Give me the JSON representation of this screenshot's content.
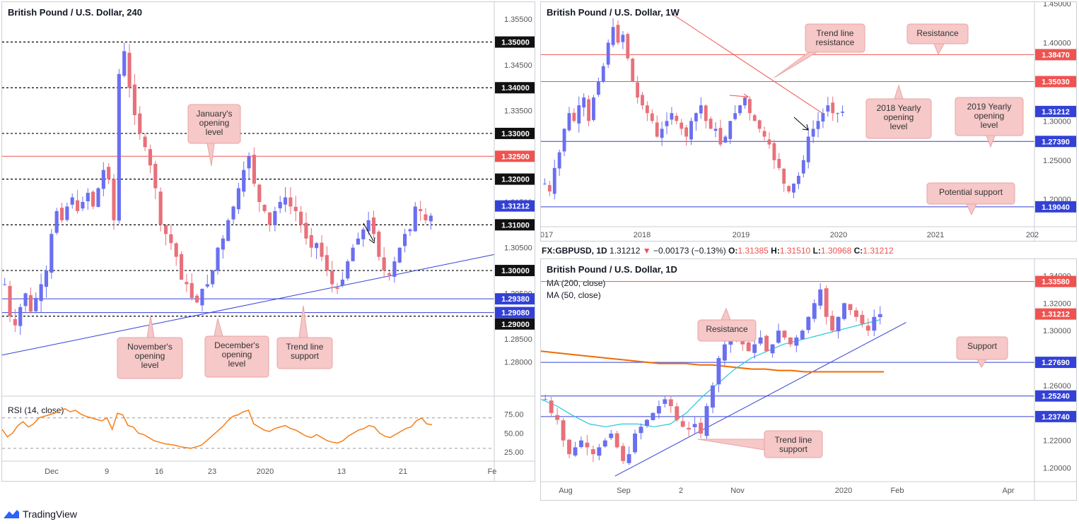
{
  "branding": {
    "name": "TradingView"
  },
  "colors": {
    "bull": "#6a6ff0",
    "bear": "#e8707a",
    "resistance": "#ef5350",
    "support": "#3341d6",
    "rsi": "#f57f17",
    "ma200": "#ef6c00",
    "ma50": "#26c6da",
    "callout_bg": "#f6c8c8",
    "callout_border": "#e9a3a3"
  },
  "header_line": {
    "symbol": "FX:GBPUSD, 1D",
    "last": "1.31212",
    "arrow": "▼",
    "change": "−0.00173 (−0.13%)",
    "o_label": "O:",
    "o": "1.31385",
    "h_label": "H:",
    "h": "1.31510",
    "l_label": "L:",
    "l": "1.30968",
    "c_label": "C:",
    "c": "1.31212"
  },
  "chart_data": [
    {
      "id": "h4",
      "type": "candlestick",
      "title": "British Pound / U.S. Dollar, 240",
      "ylim": [
        1.2725,
        1.3575
      ],
      "y_ticks": [
        "1.35500",
        "1.34500",
        "1.33500",
        "1.31500",
        "1.30500",
        "1.29500",
        "1.28500",
        "1.28000"
      ],
      "x_ticks": [
        "Dec",
        "9",
        "16",
        "23",
        "2020",
        "13",
        "21",
        "Fe"
      ],
      "dotted_levels": [
        1.35,
        1.34,
        1.33,
        1.32,
        1.31,
        1.3,
        1.29
      ],
      "horizontal_lines": [
        {
          "value": 1.325,
          "color": "red",
          "label": "1.32500"
        },
        {
          "value": 1.2938,
          "color": "blue",
          "label": "1.29380"
        },
        {
          "value": 1.2908,
          "color": "blue",
          "label": "1.29080"
        }
      ],
      "price_labels": [
        "1.35000",
        "1.34000",
        "1.33000",
        "1.32500",
        "1.32000",
        "1.31212",
        "1.31000",
        "1.30000",
        "1.29380",
        "1.29080",
        "1.29000"
      ],
      "trend_line": {
        "from": [
          0,
          1.2815
        ],
        "to": [
          1,
          1.3035
        ]
      },
      "annotations": [
        "January's opening level",
        "November's opening level",
        "December's opening level",
        "Trend line support"
      ],
      "close_path": [
        1.297,
        1.29,
        1.288,
        1.292,
        1.295,
        1.291,
        1.294,
        1.297,
        1.3,
        1.308,
        1.313,
        1.311,
        1.314,
        1.316,
        1.313,
        1.315,
        1.317,
        1.314,
        1.318,
        1.322,
        1.32,
        1.311,
        1.343,
        1.348,
        1.34,
        1.334,
        1.33,
        1.327,
        1.323,
        1.318,
        1.31,
        1.308,
        1.306,
        1.303,
        1.298,
        1.297,
        1.294,
        1.293,
        1.296,
        1.297,
        1.3,
        1.305,
        1.307,
        1.311,
        1.314,
        1.318,
        1.322,
        1.325,
        1.319,
        1.315,
        1.313,
        1.31,
        1.313,
        1.315,
        1.316,
        1.314,
        1.313,
        1.31,
        1.307,
        1.305,
        1.306,
        1.303,
        1.3,
        1.297,
        1.296,
        1.298,
        1.302,
        1.305,
        1.307,
        1.309,
        1.311,
        1.308,
        1.303,
        1.3,
        1.299,
        1.302,
        1.305,
        1.308,
        1.309,
        1.314,
        1.313,
        1.311,
        1.312
      ],
      "rsi": {
        "label": "RSI (14, close)",
        "levels": [
          70,
          30
        ],
        "ticks": [
          "75.00",
          "50.00",
          "25.00"
        ],
        "values": [
          55,
          45,
          50,
          60,
          65,
          58,
          62,
          70,
          72,
          74,
          76,
          80,
          82,
          78,
          80,
          75,
          72,
          70,
          68,
          66,
          70,
          55,
          76,
          74,
          60,
          58,
          50,
          48,
          44,
          40,
          38,
          36,
          35,
          34,
          32,
          31,
          30,
          32,
          34,
          40,
          46,
          52,
          58,
          66,
          72,
          74,
          78,
          80,
          62,
          58,
          54,
          52,
          56,
          58,
          60,
          56,
          54,
          50,
          46,
          44,
          48,
          44,
          40,
          38,
          37,
          40,
          46,
          50,
          54,
          56,
          60,
          58,
          50,
          46,
          44,
          48,
          52,
          56,
          58,
          66,
          70,
          62,
          61
        ]
      }
    },
    {
      "id": "weekly",
      "type": "candlestick",
      "title": "British Pound / U.S. Dollar, 1W",
      "ylim": [
        1.165,
        1.45
      ],
      "y_ticks": [
        "1.45000",
        "1.40000",
        "1.30000",
        "1.25000",
        "1.20000"
      ],
      "x_ticks": [
        "017",
        "2018",
        "2019",
        "2020",
        "2021",
        "202"
      ],
      "horizontal_lines": [
        {
          "value": 1.3847,
          "color": "red",
          "label": "1.38470"
        },
        {
          "value": 1.3503,
          "color": "red",
          "label": "1.35030"
        },
        {
          "value": 1.2739,
          "color": "blue",
          "label": "1.27390"
        },
        {
          "value": 1.1904,
          "color": "blue",
          "label": "1.19040"
        }
      ],
      "price_labels": [
        "1.38470",
        "1.35030",
        "1.31212",
        "1.27390",
        "1.19040"
      ],
      "trend_line": {
        "from": [
          0.27,
          1.435
        ],
        "to": [
          0.57,
          1.31
        ]
      },
      "annotations": [
        "Trend line resistance",
        "Resistance",
        "2018 Yearly opening level",
        "2019 Yearly opening level",
        "Potential support"
      ],
      "close_path": [
        1.22,
        1.21,
        1.24,
        1.26,
        1.29,
        1.31,
        1.3,
        1.32,
        1.33,
        1.3,
        1.33,
        1.35,
        1.37,
        1.4,
        1.42,
        1.4,
        1.41,
        1.38,
        1.35,
        1.33,
        1.32,
        1.31,
        1.3,
        1.28,
        1.29,
        1.3,
        1.31,
        1.3,
        1.29,
        1.28,
        1.3,
        1.31,
        1.32,
        1.3,
        1.29,
        1.29,
        1.27,
        1.28,
        1.3,
        1.31,
        1.32,
        1.33,
        1.31,
        1.3,
        1.29,
        1.28,
        1.27,
        1.25,
        1.24,
        1.22,
        1.21,
        1.22,
        1.23,
        1.25,
        1.28,
        1.29,
        1.3,
        1.31,
        1.32,
        1.31,
        1.31,
        1.312
      ]
    },
    {
      "id": "daily",
      "type": "candlestick",
      "title": "British Pound / U.S. Dollar, 1D",
      "ylim": [
        1.19,
        1.35
      ],
      "y_ticks": [
        "1.34000",
        "1.32000",
        "1.30000",
        "1.26000",
        "1.22000",
        "1.20000"
      ],
      "x_ticks": [
        "Aug",
        "Sep",
        "2",
        "Nov",
        "2020",
        "Feb",
        "Apr"
      ],
      "horizontal_lines": [
        {
          "value": 1.3358,
          "color": "red",
          "label": "1.33580"
        },
        {
          "value": 1.2769,
          "color": "blue",
          "label": "1.27690"
        },
        {
          "value": 1.2524,
          "color": "blue",
          "label": "1.25240"
        },
        {
          "value": 1.2374,
          "color": "blue",
          "label": "1.23740"
        }
      ],
      "price_labels": [
        "1.33580",
        "1.31212",
        "1.27690",
        "1.25240",
        "1.23740"
      ],
      "trend_line": {
        "from": [
          0.15,
          1.194
        ],
        "to": [
          0.74,
          1.306
        ]
      },
      "legend": [
        "MA (200, close)",
        "MA (50, close)"
      ],
      "annotations": [
        "Resistance",
        "Support",
        "Trend line support"
      ],
      "close_path": [
        1.25,
        1.24,
        1.235,
        1.22,
        1.21,
        1.215,
        1.22,
        1.215,
        1.21,
        1.215,
        1.22,
        1.225,
        1.215,
        1.205,
        1.21,
        1.225,
        1.23,
        1.235,
        1.24,
        1.245,
        1.25,
        1.245,
        1.235,
        1.23,
        1.228,
        1.232,
        1.225,
        1.245,
        1.26,
        1.28,
        1.29,
        1.3,
        1.295,
        1.29,
        1.285,
        1.29,
        1.295,
        1.285,
        1.29,
        1.3,
        1.295,
        1.29,
        1.295,
        1.3,
        1.31,
        1.32,
        1.33,
        1.31,
        1.3,
        1.31,
        1.32,
        1.315,
        1.31,
        1.305,
        1.3,
        1.31,
        1.312
      ],
      "ma200": [
        1.285,
        1.284,
        1.283,
        1.282,
        1.281,
        1.28,
        1.279,
        1.278,
        1.277,
        1.276,
        1.276,
        1.276,
        1.275,
        1.275,
        1.274,
        1.273,
        1.272,
        1.272,
        1.271,
        1.271,
        1.27,
        1.27,
        1.27,
        1.27,
        1.27,
        1.27,
        1.27
      ],
      "ma50": [
        1.25,
        1.245,
        1.238,
        1.232,
        1.23,
        1.232,
        1.232,
        1.23,
        1.232,
        1.24,
        1.252,
        1.262,
        1.272,
        1.28,
        1.285,
        1.29,
        1.293,
        1.296,
        1.299,
        1.302,
        1.305,
        1.308
      ]
    }
  ]
}
